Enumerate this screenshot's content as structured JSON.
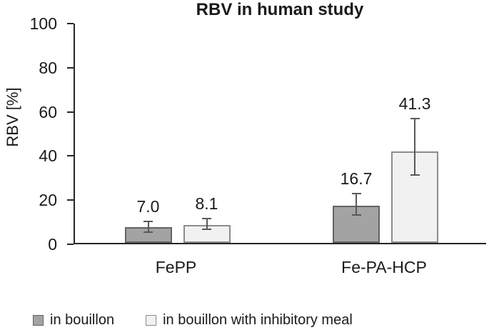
{
  "background": "#ffffff",
  "chart_data": {
    "type": "bar",
    "title": "RBV in human study",
    "xlabel": "",
    "ylabel": "RBV [%]",
    "ylim": [
      0,
      100
    ],
    "yticks": [
      0,
      20,
      40,
      60,
      80,
      100
    ],
    "grid": false,
    "legend_position": "bottom",
    "axis_color": "#262626",
    "error_bar_color": "#595959",
    "categories": [
      "FePP",
      "Fe-PA-HCP"
    ],
    "series": [
      {
        "name": "in bouillon",
        "fill": "#a3a3a3",
        "border": "#636363",
        "values": [
          7.0,
          16.7
        ],
        "value_labels": [
          "7.0",
          "16.7"
        ],
        "error_low": [
          4.5,
          12.2
        ],
        "error_high": [
          10.0,
          22.7
        ]
      },
      {
        "name": "in bouillon with inhibitory meal",
        "fill": "#f1f1f1",
        "border": "#8c8c8c",
        "values": [
          8.1,
          41.3
        ],
        "value_labels": [
          "8.1",
          "41.3"
        ],
        "error_low": [
          5.8,
          30.4
        ],
        "error_high": [
          11.3,
          56.5
        ]
      }
    ]
  }
}
